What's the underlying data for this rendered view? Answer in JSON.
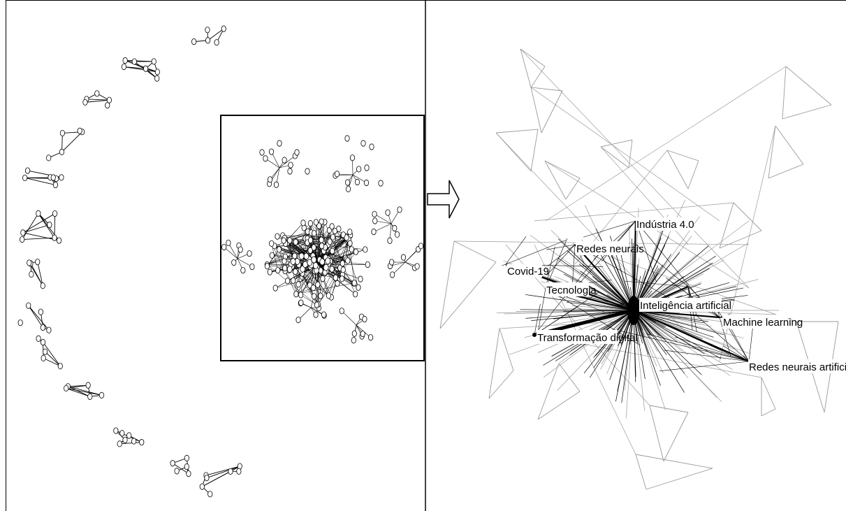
{
  "figure": {
    "left_panel": "full keyword co-occurrence network with isolated clusters and main component",
    "right_panel": "zoomed main component"
  },
  "labels": {
    "industria": "Indústria 4.0",
    "redes_neurais": "Redes neurais",
    "covid": "Covid-19",
    "tecnologia": "Tecnologia",
    "ia": "Inteligência artificial",
    "machine_learning": "Machine learning",
    "transformacao": "Transformação digital",
    "rna": "Redes neurais artificiais"
  },
  "colors": {
    "line": "#000000",
    "light_edge": "#9a9a9a",
    "node_fill": "#ffffff"
  }
}
